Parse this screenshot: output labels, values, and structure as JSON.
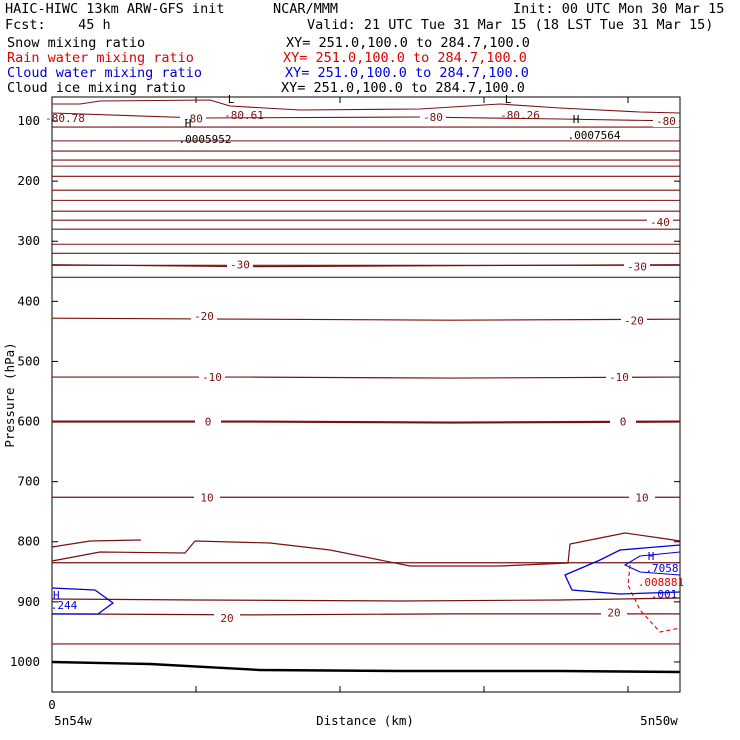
{
  "header": {
    "line1_left": "HAIC-HIWC 13km ARW-GFS init",
    "line1_mid": "NCAR/MMM",
    "init": "Init: 00 UTC Mon 30 Mar 15",
    "fcst": "Fcst:    45 h",
    "valid": "Valid: 21 UTC Tue 31 Mar 15 (18 LST Tue 31 Mar 15)"
  },
  "fields": [
    {
      "name": "Snow mixing ratio",
      "xy": "XY= 251.0,100.0 to 284.7,100.0",
      "color": "#000000"
    },
    {
      "name": "Rain water mixing ratio",
      "xy": "XY= 251.0,100.0 to 284.7,100.0",
      "color": "#e00000"
    },
    {
      "name": "Cloud water mixing ratio",
      "xy": "XY= 251.0,100.0 to 284.7,100.0",
      "color": "#0000dd"
    },
    {
      "name": "Cloud ice mixing ratio",
      "xy": "XY= 251.0,100.0 to 284.7,100.0",
      "color": "#000000"
    }
  ],
  "chart_data": {
    "type": "contour",
    "ylabel": "Pressure (hPa)",
    "xlabel": "Distance (km)",
    "ylim": [
      1050,
      60
    ],
    "yticks": [
      100,
      200,
      300,
      400,
      500,
      600,
      700,
      800,
      900,
      1000
    ],
    "xtick_label": "0",
    "left_label": "5n54w",
    "right_label": "5n50w",
    "temperature_contour_labels": [
      {
        "label": "-80",
        "p": 96
      },
      {
        "label": "-80",
        "p": 93
      },
      {
        "label": "-80",
        "p": 100
      },
      {
        "label": "-40",
        "p": 268
      },
      {
        "label": "-30",
        "p": 339
      },
      {
        "label": "-30",
        "p": 342
      },
      {
        "label": "-20",
        "p": 424
      },
      {
        "label": "-20",
        "p": 432
      },
      {
        "label": "-10",
        "p": 526
      },
      {
        "label": "-10",
        "p": 526
      },
      {
        "label": "0",
        "p": 600
      },
      {
        "label": "0",
        "p": 600
      },
      {
        "label": "10",
        "p": 726
      },
      {
        "label": "10",
        "p": 726
      },
      {
        "label": "20",
        "p": 927
      },
      {
        "label": "20",
        "p": 918
      }
    ],
    "extrema": [
      {
        "mark": "L",
        "value": "-80.61",
        "p": 90
      },
      {
        "mark": "L",
        "value": "-80.26",
        "p": 90
      },
      {
        "mark": "H",
        "value": ".0005952",
        "p": 130
      },
      {
        "mark": "H",
        "value": ".0007564",
        "p": 123
      }
    ],
    "left_partial_value": "-80.78",
    "cloud_water": {
      "max_label": "H",
      "value": ".7058",
      "contour": ".001",
      "left_label": "H",
      "left_value": ".244"
    },
    "rain_water": {
      "value": ".008881"
    }
  }
}
